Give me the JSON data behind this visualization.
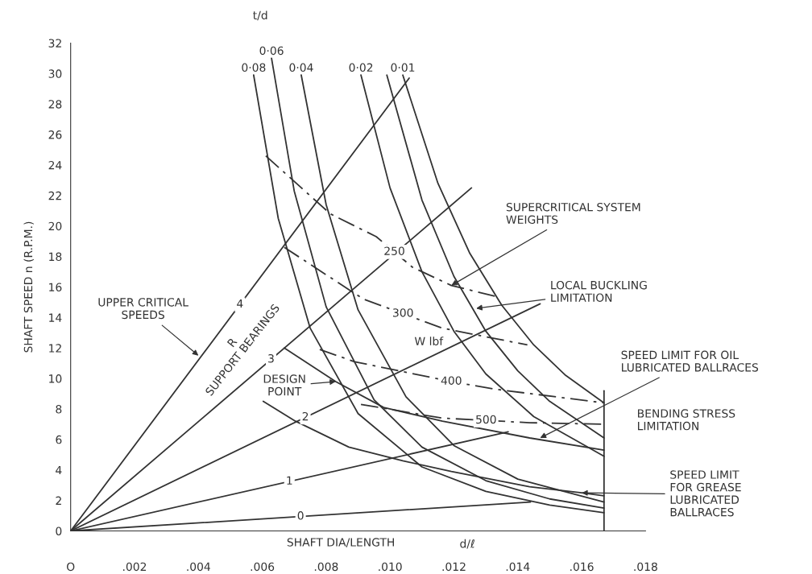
{
  "chart_data": {
    "type": "line",
    "xlabel": "SHAFT DIA/LENGTH",
    "ylabel": "SHAFT SPEED n (R.P.M.)",
    "xlim": [
      0,
      0.018
    ],
    "ylim": [
      0,
      32
    ],
    "xticks": [
      {
        "value": 0,
        "label": "O"
      },
      {
        "value": 0.002,
        "label": ".002"
      },
      {
        "value": 0.004,
        "label": ".004"
      },
      {
        "value": 0.006,
        "label": ".006"
      },
      {
        "value": 0.008,
        "label": ".008"
      },
      {
        "value": 0.01,
        "label": ".010"
      },
      {
        "value": 0.012,
        "label": ".012"
      },
      {
        "value": 0.014,
        "label": ".014"
      },
      {
        "value": 0.016,
        "label": ".016"
      },
      {
        "value": 0.018,
        "label": ".018"
      }
    ],
    "yticks": [
      0,
      2,
      4,
      6,
      8,
      10,
      12,
      14,
      16,
      18,
      20,
      22,
      24,
      26,
      28,
      30,
      32
    ],
    "grid": false,
    "legend": false,
    "marker": "none",
    "series": [
      {
        "name": "0·08",
        "color": "#333333",
        "line_style": "solid",
        "x": [
          0.00573,
          0.0065,
          0.0075,
          0.009,
          0.011,
          0.013,
          0.015,
          0.0167
        ],
        "values": [
          29.9,
          20.5,
          13.3,
          7.7,
          4.2,
          2.6,
          1.7,
          1.2
        ]
      },
      {
        "name": "0·06",
        "color": "#333333",
        "line_style": "solid",
        "x": [
          0.00629,
          0.007,
          0.008,
          0.0095,
          0.011,
          0.013,
          0.015,
          0.0167
        ],
        "values": [
          31.0,
          22.3,
          14.7,
          8.6,
          5.5,
          3.3,
          2.1,
          1.5
        ]
      },
      {
        "name": "0·04",
        "color": "#333333",
        "line_style": "solid",
        "x": [
          0.00722,
          0.008,
          0.009,
          0.0105,
          0.012,
          0.014,
          0.0167
        ],
        "values": [
          29.9,
          21.4,
          14.5,
          8.8,
          5.6,
          3.4,
          1.9
        ]
      },
      {
        "name": "0·02",
        "color": "#333333",
        "line_style": "solid",
        "x": [
          0.00909,
          0.01,
          0.011,
          0.012,
          0.013,
          0.0145,
          0.0167
        ],
        "values": [
          29.9,
          22.5,
          17.0,
          13.1,
          10.3,
          7.5,
          4.9
        ]
      },
      {
        "name": "0·01",
        "color": "#333333",
        "line_style": "solid",
        "x": [
          0.0104,
          0.0115,
          0.0125,
          0.0135,
          0.0145,
          0.0155,
          0.0167
        ],
        "values": [
          29.9,
          22.8,
          18.2,
          14.8,
          12.2,
          10.2,
          8.4
        ]
      },
      {
        "color": "#333333",
        "line_style": "solid",
        "x": [
          0.0099,
          0.011,
          0.012,
          0.013,
          0.014,
          0.015,
          0.0167
        ],
        "values": [
          29.9,
          21.7,
          16.7,
          13.1,
          10.5,
          8.5,
          6.1
        ]
      },
      {
        "color": "#333333",
        "line_style": "solid",
        "x": [
          0.00669,
          0.0083,
          0.0098,
          0.01164,
          0.01437,
          0.0167
        ],
        "values": [
          12.0,
          9.8,
          8.1,
          7.2,
          6.1,
          5.3
        ]
      },
      {
        "color": "#333333",
        "line_style": "solid",
        "x": [
          0.00603,
          0.00704,
          0.00871,
          0.0104,
          0.01192,
          0.01437,
          0.016,
          0.0167
        ],
        "values": [
          8.5,
          7.2,
          5.5,
          4.6,
          3.9,
          2.9,
          2.5,
          2.3
        ]
      },
      {
        "name": "250",
        "color": "#333333",
        "line_style": "dashed",
        "x": [
          0.00611,
          0.00813,
          0.00957,
          0.0107,
          0.01192,
          0.01328
        ],
        "values": [
          24.6,
          20.8,
          19.3,
          17.3,
          16.1,
          15.4
        ]
      },
      {
        "name": "300",
        "color": "#333333",
        "line_style": "dashed",
        "x": [
          0.00669,
          0.00917,
          0.01164,
          0.0143
        ],
        "values": [
          18.6,
          15.2,
          13.3,
          12.2
        ]
      },
      {
        "name": "400",
        "color": "#333333",
        "line_style": "dashed",
        "x": [
          0.0078,
          0.00889,
          0.01192,
          0.01328,
          0.0167
        ],
        "values": [
          11.9,
          11.1,
          9.8,
          9.3,
          8.4
        ]
      },
      {
        "name": "500",
        "color": "#333333",
        "line_style": "dashed",
        "x": [
          0.00909,
          0.01164,
          0.01437,
          0.0167
        ],
        "values": [
          8.3,
          7.4,
          7.1,
          7.0
        ]
      },
      {
        "name": "0",
        "color": "#333333",
        "line_style": "solid",
        "x": [
          0,
          0.0144
        ],
        "values": [
          0,
          1.9
        ]
      },
      {
        "name": "1",
        "color": "#333333",
        "line_style": "solid",
        "x": [
          0,
          0.0137
        ],
        "values": [
          0,
          6.5
        ]
      },
      {
        "name": "2",
        "color": "#333333",
        "line_style": "solid",
        "x": [
          0,
          0.0147
        ],
        "values": [
          0,
          14.9
        ]
      },
      {
        "name": "3",
        "color": "#333333",
        "line_style": "solid",
        "x": [
          0,
          0.01255
        ],
        "values": [
          0,
          22.5
        ]
      },
      {
        "name": "4",
        "color": "#333333",
        "line_style": "solid",
        "x": [
          0,
          0.0106
        ],
        "values": [
          0,
          29.7
        ]
      },
      {
        "color": "#333333",
        "line_style": "solid",
        "x": [
          0.0167,
          0.0167
        ],
        "values": [
          0,
          9.2
        ]
      }
    ],
    "annotations": [
      {
        "text": "UPPER CRITICAL\nSPEEDS",
        "x": 0.004,
        "y": 11.5
      },
      "SUPPORT BEARINGS",
      {
        "text": "DESIGN\nPOINT",
        "x": 0.0083,
        "y": 9.8
      },
      {
        "text": "SUPERCRITICAL SYSTEM\nWEIGHTS",
        "x": 0.01192,
        "y": 16.1
      },
      {
        "text": "LOCAL BUCKLING\nLIMITATION",
        "x": 0.0127,
        "y": 14.6
      },
      {
        "text": "SPEED LIMIT FOR OIL\nLUBRICATED BALLRACES",
        "x": 0.0147,
        "y": 6.1
      },
      "BENDING STRESS\nLIMITATION",
      {
        "text": "SPEED LIMIT\nFOR GREASE\nLUBRICATED\nBALLRACES",
        "x": 0.016,
        "y": 2.5
      },
      "t/d",
      "W lbf",
      "d/ℓ",
      "R"
    ]
  }
}
